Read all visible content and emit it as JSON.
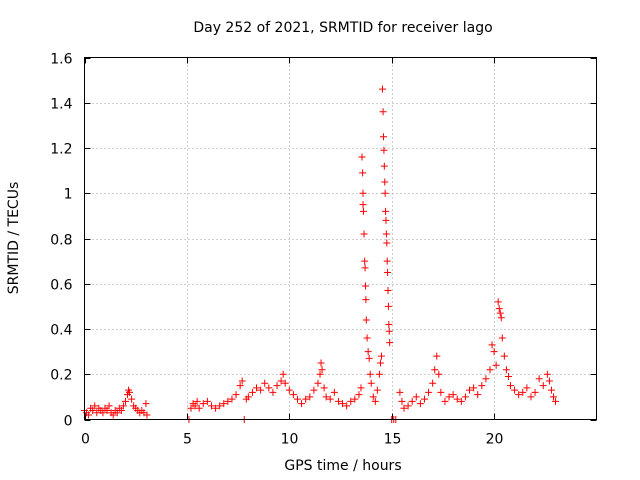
{
  "chart_data": {
    "type": "scatter",
    "title": "Day 252 of 2021, SRMTID for receiver lago",
    "xlabel": "GPS time / hours",
    "ylabel": "SRMTID / TECUs",
    "xlim": [
      0,
      25
    ],
    "ylim": [
      0,
      1.6
    ],
    "xticks": [
      0,
      5,
      10,
      15,
      20
    ],
    "xtick_labels": [
      "0",
      "5",
      "10",
      "15",
      "20"
    ],
    "yticks": [
      0,
      0.2,
      0.4,
      0.6,
      0.8,
      1.0,
      1.2,
      1.4,
      1.6
    ],
    "ytick_labels": [
      "0",
      "0.2",
      "0.4",
      "0.6",
      "0.8",
      "1",
      "1.2",
      "1.4",
      "1.6"
    ],
    "grid": true,
    "marker": "+",
    "color": "#ff0000",
    "series": [
      {
        "name": "SRMTID",
        "points": [
          [
            0.0,
            0.04
          ],
          [
            0.1,
            0.03
          ],
          [
            0.2,
            0.02
          ],
          [
            0.3,
            0.05
          ],
          [
            0.4,
            0.04
          ],
          [
            0.5,
            0.06
          ],
          [
            0.6,
            0.03
          ],
          [
            0.7,
            0.05
          ],
          [
            0.8,
            0.04
          ],
          [
            0.9,
            0.03
          ],
          [
            1.0,
            0.05
          ],
          [
            1.1,
            0.04
          ],
          [
            1.2,
            0.06
          ],
          [
            1.3,
            0.03
          ],
          [
            1.4,
            0.02
          ],
          [
            1.5,
            0.04
          ],
          [
            1.6,
            0.03
          ],
          [
            1.7,
            0.05
          ],
          [
            1.8,
            0.04
          ],
          [
            1.9,
            0.06
          ],
          [
            2.0,
            0.08
          ],
          [
            2.1,
            0.11
          ],
          [
            2.15,
            0.13
          ],
          [
            2.2,
            0.12
          ],
          [
            2.3,
            0.09
          ],
          [
            2.4,
            0.06
          ],
          [
            2.5,
            0.05
          ],
          [
            2.6,
            0.04
          ],
          [
            2.7,
            0.03
          ],
          [
            2.8,
            0.04
          ],
          [
            2.9,
            0.03
          ],
          [
            3.0,
            0.07
          ],
          [
            3.05,
            0.02
          ],
          [
            5.1,
            0.0
          ],
          [
            5.2,
            0.05
          ],
          [
            5.3,
            0.07
          ],
          [
            5.4,
            0.06
          ],
          [
            5.5,
            0.08
          ],
          [
            5.6,
            0.05
          ],
          [
            5.8,
            0.07
          ],
          [
            6.0,
            0.08
          ],
          [
            6.2,
            0.06
          ],
          [
            6.4,
            0.05
          ],
          [
            6.6,
            0.06
          ],
          [
            6.8,
            0.07
          ],
          [
            7.0,
            0.08
          ],
          [
            7.2,
            0.09
          ],
          [
            7.4,
            0.11
          ],
          [
            7.6,
            0.15
          ],
          [
            7.7,
            0.17
          ],
          [
            7.8,
            0.0
          ],
          [
            7.9,
            0.09
          ],
          [
            8.0,
            0.1
          ],
          [
            8.2,
            0.12
          ],
          [
            8.4,
            0.14
          ],
          [
            8.6,
            0.13
          ],
          [
            8.8,
            0.16
          ],
          [
            9.0,
            0.14
          ],
          [
            9.2,
            0.12
          ],
          [
            9.4,
            0.15
          ],
          [
            9.6,
            0.17
          ],
          [
            9.7,
            0.2
          ],
          [
            9.8,
            0.16
          ],
          [
            10.0,
            0.13
          ],
          [
            10.2,
            0.11
          ],
          [
            10.4,
            0.09
          ],
          [
            10.6,
            0.07
          ],
          [
            10.8,
            0.09
          ],
          [
            11.0,
            0.1
          ],
          [
            11.2,
            0.13
          ],
          [
            11.4,
            0.16
          ],
          [
            11.5,
            0.2
          ],
          [
            11.55,
            0.25
          ],
          [
            11.6,
            0.22
          ],
          [
            11.7,
            0.14
          ],
          [
            11.8,
            0.1
          ],
          [
            12.0,
            0.09
          ],
          [
            12.2,
            0.12
          ],
          [
            12.4,
            0.08
          ],
          [
            12.6,
            0.07
          ],
          [
            12.8,
            0.06
          ],
          [
            13.0,
            0.08
          ],
          [
            13.2,
            0.09
          ],
          [
            13.4,
            0.11
          ],
          [
            13.5,
            0.14
          ],
          [
            13.55,
            1.16
          ],
          [
            13.58,
            1.09
          ],
          [
            13.6,
            1.0
          ],
          [
            13.6,
            0.95
          ],
          [
            13.62,
            0.92
          ],
          [
            13.65,
            0.82
          ],
          [
            13.68,
            0.7
          ],
          [
            13.7,
            0.67
          ],
          [
            13.72,
            0.59
          ],
          [
            13.74,
            0.53
          ],
          [
            13.76,
            0.44
          ],
          [
            13.8,
            0.36
          ],
          [
            13.85,
            0.3
          ],
          [
            13.9,
            0.27
          ],
          [
            13.95,
            0.2
          ],
          [
            14.0,
            0.16
          ],
          [
            14.1,
            0.1
          ],
          [
            14.2,
            0.08
          ],
          [
            14.3,
            0.13
          ],
          [
            14.4,
            0.2
          ],
          [
            14.45,
            0.25
          ],
          [
            14.5,
            0.28
          ],
          [
            14.55,
            1.46
          ],
          [
            14.58,
            1.36
          ],
          [
            14.6,
            1.25
          ],
          [
            14.62,
            1.19
          ],
          [
            14.64,
            1.12
          ],
          [
            14.66,
            1.05
          ],
          [
            14.68,
            1.0
          ],
          [
            14.7,
            0.92
          ],
          [
            14.72,
            0.88
          ],
          [
            14.74,
            0.82
          ],
          [
            14.76,
            0.78
          ],
          [
            14.78,
            0.7
          ],
          [
            14.8,
            0.65
          ],
          [
            14.82,
            0.57
          ],
          [
            14.84,
            0.5
          ],
          [
            14.86,
            0.42
          ],
          [
            14.88,
            0.39
          ],
          [
            14.9,
            0.34
          ],
          [
            15.0,
            0.0
          ],
          [
            15.1,
            0.0
          ],
          [
            15.2,
            0.0
          ],
          [
            15.4,
            0.12
          ],
          [
            15.5,
            0.08
          ],
          [
            15.6,
            0.05
          ],
          [
            15.8,
            0.06
          ],
          [
            16.0,
            0.08
          ],
          [
            16.2,
            0.1
          ],
          [
            16.4,
            0.07
          ],
          [
            16.6,
            0.09
          ],
          [
            16.8,
            0.12
          ],
          [
            17.0,
            0.16
          ],
          [
            17.1,
            0.22
          ],
          [
            17.2,
            0.28
          ],
          [
            17.3,
            0.2
          ],
          [
            17.4,
            0.12
          ],
          [
            17.6,
            0.08
          ],
          [
            17.8,
            0.1
          ],
          [
            18.0,
            0.11
          ],
          [
            18.2,
            0.09
          ],
          [
            18.4,
            0.08
          ],
          [
            18.6,
            0.1
          ],
          [
            18.8,
            0.13
          ],
          [
            19.0,
            0.14
          ],
          [
            19.2,
            0.11
          ],
          [
            19.4,
            0.15
          ],
          [
            19.6,
            0.18
          ],
          [
            19.8,
            0.22
          ],
          [
            19.9,
            0.33
          ],
          [
            20.0,
            0.3
          ],
          [
            20.1,
            0.24
          ],
          [
            20.2,
            0.52
          ],
          [
            20.25,
            0.49
          ],
          [
            20.3,
            0.47
          ],
          [
            20.35,
            0.45
          ],
          [
            20.4,
            0.36
          ],
          [
            20.5,
            0.28
          ],
          [
            20.6,
            0.22
          ],
          [
            20.7,
            0.19
          ],
          [
            20.8,
            0.15
          ],
          [
            21.0,
            0.13
          ],
          [
            21.2,
            0.11
          ],
          [
            21.4,
            0.12
          ],
          [
            21.6,
            0.14
          ],
          [
            21.8,
            0.1
          ],
          [
            22.0,
            0.12
          ],
          [
            22.2,
            0.18
          ],
          [
            22.4,
            0.15
          ],
          [
            22.6,
            0.2
          ],
          [
            22.7,
            0.17
          ],
          [
            22.8,
            0.13
          ],
          [
            22.9,
            0.1
          ],
          [
            23.0,
            0.08
          ]
        ]
      }
    ]
  }
}
